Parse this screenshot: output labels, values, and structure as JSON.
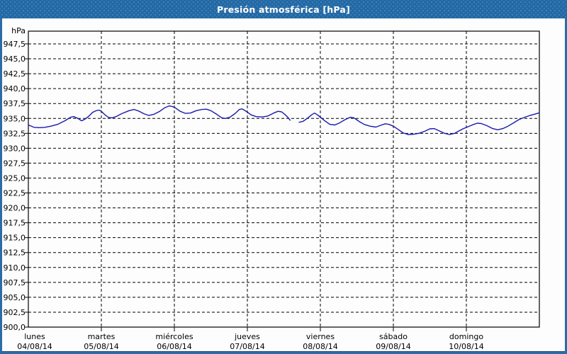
{
  "window": {
    "title": "Presión atmosférica [hPa]"
  },
  "colors": {
    "titlebar": "#2268a4",
    "frame": "#2b6ca7",
    "plot_background": "#fcfdfc",
    "grid": "#000000",
    "line": "#1a1aad",
    "title_text": "#ffffff",
    "axis_text": "#000000"
  },
  "chart_data": {
    "type": "line",
    "title": "Presión atmosférica [hPa]",
    "unit_label": "hPa",
    "ylabel": "hPa",
    "ylim": [
      900.0,
      949.4
    ],
    "y_tick_step": 2.5,
    "grid": "dashed",
    "legend_position": "none",
    "y_tick_labels": [
      "947,5",
      "945,0",
      "942,5",
      "940,0",
      "937,5",
      "935,0",
      "932,5",
      "930,0",
      "927,5",
      "925,0",
      "922,5",
      "920,0",
      "917,5",
      "915,0",
      "912,5",
      "910,0",
      "907,5",
      "905,0",
      "902,5",
      "900,0"
    ],
    "x_axis": {
      "unit": "days",
      "range_days": [
        0,
        7
      ],
      "days": [
        {
          "name": "lunes",
          "date": "04/08/14"
        },
        {
          "name": "martes",
          "date": "05/08/14"
        },
        {
          "name": "miércoles",
          "date": "06/08/14"
        },
        {
          "name": "jueves",
          "date": "07/08/14"
        },
        {
          "name": "viernes",
          "date": "08/08/14"
        },
        {
          "name": "sábado",
          "date": "09/08/14"
        },
        {
          "name": "domingo",
          "date": "10/08/14"
        }
      ]
    },
    "series": {
      "name": "Presión atmosférica",
      "unit": "hPa",
      "note": "x = days since Monday 04/08/14 00:00, gap in data Thursday afternoon",
      "segments": [
        [
          [
            0.0,
            933.9
          ],
          [
            0.08,
            933.5
          ],
          [
            0.15,
            933.45
          ],
          [
            0.22,
            933.5
          ],
          [
            0.31,
            933.7
          ],
          [
            0.4,
            934.0
          ],
          [
            0.5,
            934.6
          ],
          [
            0.58,
            935.2
          ],
          [
            0.62,
            935.3
          ],
          [
            0.68,
            935.0
          ],
          [
            0.73,
            934.6
          ],
          [
            0.78,
            934.9
          ],
          [
            0.83,
            935.4
          ],
          [
            0.88,
            936.0
          ],
          [
            0.93,
            936.3
          ],
          [
            0.97,
            936.4
          ],
          [
            1.0,
            936.2
          ],
          [
            1.05,
            935.6
          ],
          [
            1.1,
            935.15
          ],
          [
            1.15,
            935.1
          ],
          [
            1.2,
            935.3
          ],
          [
            1.28,
            935.8
          ],
          [
            1.38,
            936.3
          ],
          [
            1.45,
            936.5
          ],
          [
            1.52,
            936.2
          ],
          [
            1.58,
            935.8
          ],
          [
            1.65,
            935.5
          ],
          [
            1.72,
            935.7
          ],
          [
            1.8,
            936.2
          ],
          [
            1.87,
            936.8
          ],
          [
            1.93,
            937.1
          ],
          [
            1.97,
            937.0
          ],
          [
            2.01,
            936.8
          ],
          [
            2.08,
            936.2
          ],
          [
            2.15,
            935.85
          ],
          [
            2.22,
            935.9
          ],
          [
            2.3,
            936.3
          ],
          [
            2.38,
            936.5
          ],
          [
            2.44,
            936.55
          ],
          [
            2.5,
            936.3
          ],
          [
            2.58,
            935.7
          ],
          [
            2.65,
            935.1
          ],
          [
            2.7,
            935.0
          ],
          [
            2.76,
            935.2
          ],
          [
            2.83,
            935.8
          ],
          [
            2.89,
            936.5
          ],
          [
            2.93,
            936.6
          ],
          [
            2.99,
            936.15
          ],
          [
            3.05,
            935.6
          ],
          [
            3.12,
            935.3
          ],
          [
            3.2,
            935.25
          ],
          [
            3.28,
            935.4
          ],
          [
            3.36,
            935.9
          ],
          [
            3.42,
            936.2
          ],
          [
            3.47,
            936.1
          ],
          [
            3.52,
            935.6
          ],
          [
            3.56,
            935.1
          ],
          [
            3.585,
            934.7
          ]
        ],
        [
          [
            3.71,
            934.35
          ],
          [
            3.76,
            934.5
          ],
          [
            3.82,
            935.0
          ],
          [
            3.88,
            935.6
          ],
          [
            3.92,
            935.9
          ],
          [
            3.96,
            935.6
          ],
          [
            4.0,
            935.2
          ],
          [
            4.06,
            934.6
          ],
          [
            4.13,
            934.0
          ],
          [
            4.2,
            933.9
          ],
          [
            4.27,
            934.3
          ],
          [
            4.34,
            934.8
          ],
          [
            4.41,
            935.2
          ],
          [
            4.46,
            935.1
          ],
          [
            4.53,
            934.5
          ],
          [
            4.6,
            934.0
          ],
          [
            4.68,
            933.7
          ],
          [
            4.76,
            933.55
          ],
          [
            4.84,
            933.9
          ],
          [
            4.89,
            934.1
          ],
          [
            4.94,
            934.0
          ],
          [
            5.0,
            933.7
          ],
          [
            5.06,
            933.2
          ],
          [
            5.13,
            932.6
          ],
          [
            5.2,
            932.3
          ],
          [
            5.28,
            932.35
          ],
          [
            5.35,
            932.5
          ],
          [
            5.43,
            932.85
          ],
          [
            5.5,
            933.25
          ],
          [
            5.56,
            933.3
          ],
          [
            5.63,
            932.9
          ],
          [
            5.7,
            932.5
          ],
          [
            5.77,
            932.3
          ],
          [
            5.84,
            932.5
          ],
          [
            5.9,
            932.9
          ],
          [
            5.96,
            933.3
          ],
          [
            6.02,
            933.6
          ],
          [
            6.09,
            933.95
          ],
          [
            6.15,
            934.2
          ],
          [
            6.2,
            934.15
          ],
          [
            6.28,
            933.8
          ],
          [
            6.36,
            933.3
          ],
          [
            6.43,
            933.1
          ],
          [
            6.5,
            933.3
          ],
          [
            6.57,
            933.7
          ],
          [
            6.64,
            934.2
          ],
          [
            6.72,
            934.8
          ],
          [
            6.8,
            935.2
          ],
          [
            6.87,
            935.5
          ],
          [
            6.93,
            935.7
          ],
          [
            7.0,
            935.95
          ]
        ]
      ]
    }
  }
}
